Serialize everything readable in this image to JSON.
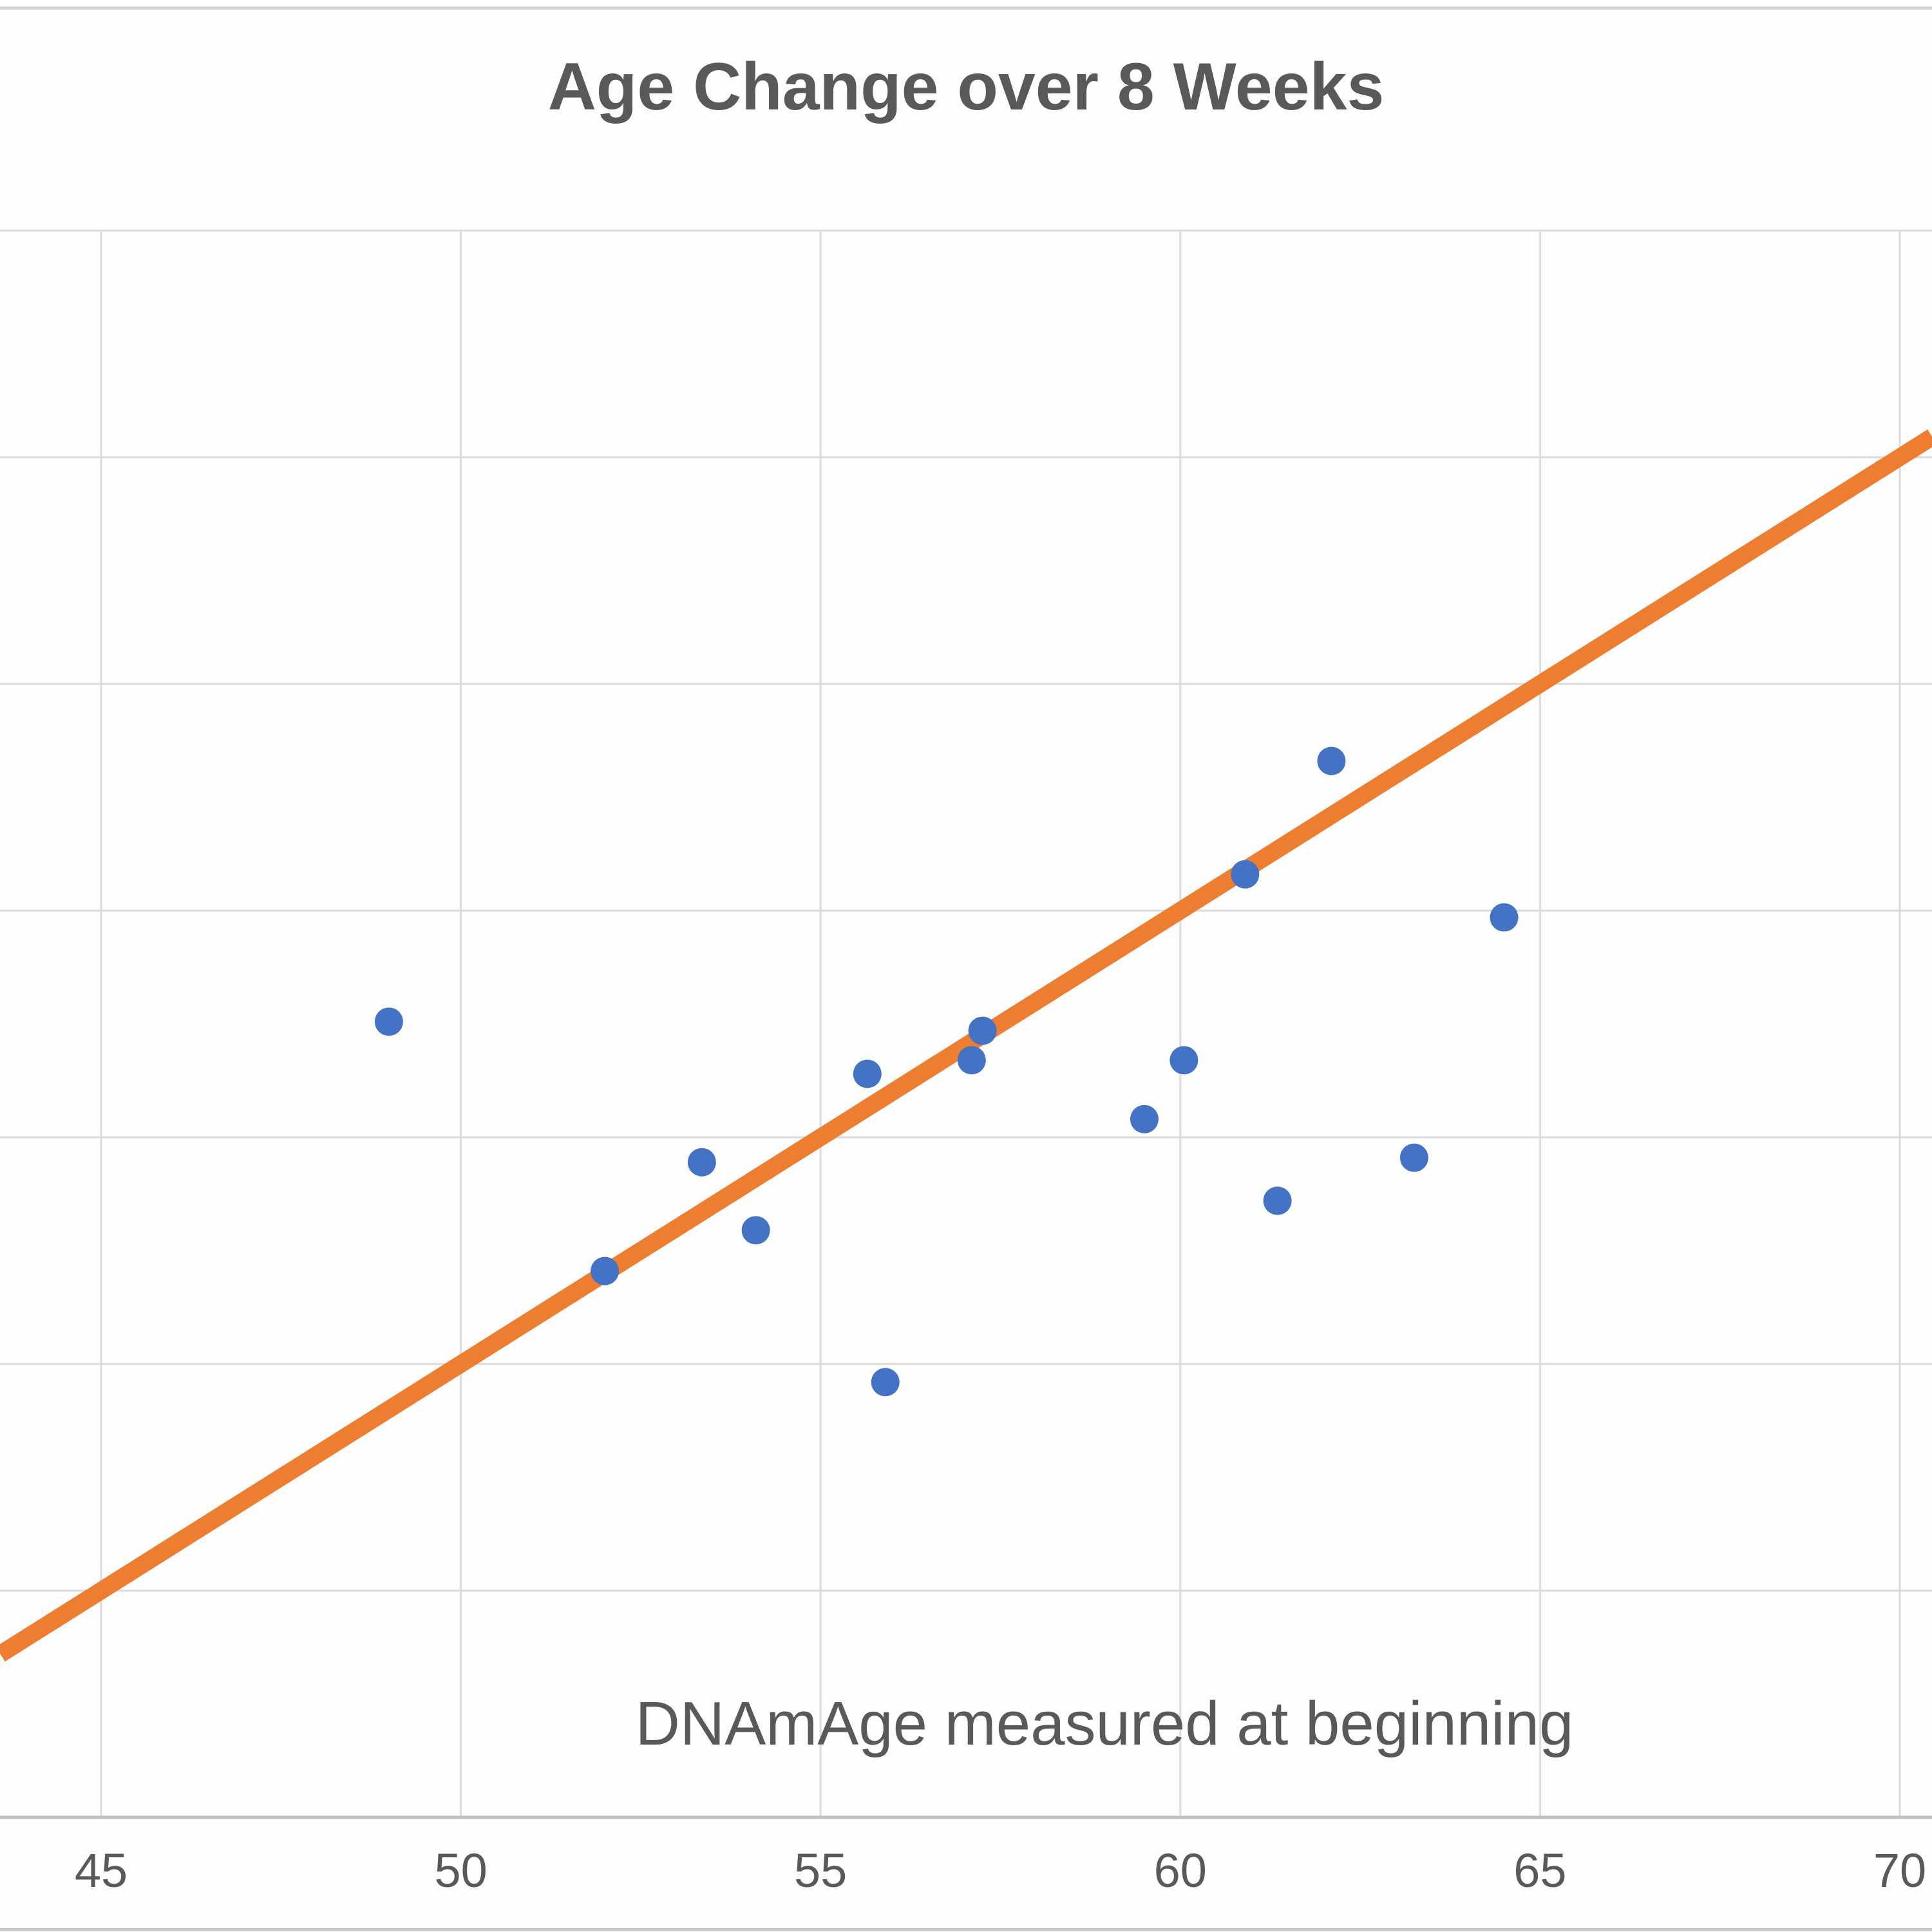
{
  "title": "Age Change over 8 Weeks",
  "chart_data": {
    "type": "scatter",
    "title": "Age Change over 8 Weeks",
    "xlabel": "DNAmAge measured at beginning",
    "ylabel": "",
    "x_ticks": [
      "45",
      "50",
      "55",
      "60",
      "65",
      "70"
    ],
    "xlim": [
      43.6,
      70.45
    ],
    "grid": true,
    "legend": "none",
    "y_axis_note": "y-axis tick labels are cropped out of the screenshot; y values below are in horizontal-gridline units (0 = bottom axis line, 7 = top gridline)",
    "y_gridlines": [
      0,
      1,
      2,
      3,
      4,
      5,
      6,
      7
    ],
    "points": [
      {
        "x": 49.0,
        "y": 3.51
      },
      {
        "x": 52.0,
        "y": 2.41
      },
      {
        "x": 53.35,
        "y": 2.89
      },
      {
        "x": 54.1,
        "y": 2.59
      },
      {
        "x": 55.65,
        "y": 3.28
      },
      {
        "x": 55.9,
        "y": 1.92
      },
      {
        "x": 57.1,
        "y": 3.34
      },
      {
        "x": 57.25,
        "y": 3.47
      },
      {
        "x": 59.5,
        "y": 3.08
      },
      {
        "x": 60.05,
        "y": 3.34
      },
      {
        "x": 60.9,
        "y": 4.16
      },
      {
        "x": 61.35,
        "y": 2.72
      },
      {
        "x": 62.1,
        "y": 4.66
      },
      {
        "x": 63.25,
        "y": 2.91
      },
      {
        "x": 64.5,
        "y": 3.97
      }
    ],
    "trendline": {
      "x_start": 43.6,
      "y_start": 0.72,
      "x_end": 70.45,
      "y_end": 6.09
    },
    "colors": {
      "points": "#4472C4",
      "trendline": "#ED7D31",
      "gridlines": "#dbdbdb",
      "axis_line": "#bfbfbf",
      "text": "#595959"
    }
  }
}
